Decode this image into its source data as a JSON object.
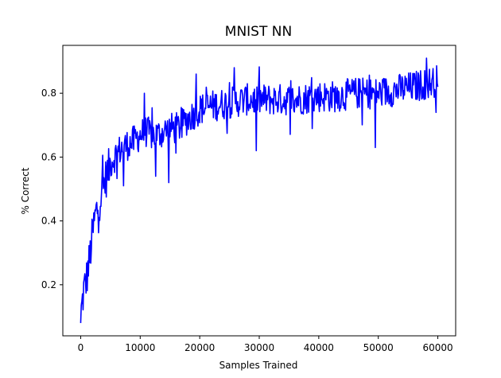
{
  "chart_data": {
    "type": "line",
    "title": "MNIST NN",
    "xlabel": "Samples Trained",
    "ylabel": "% Correct",
    "xlim": [
      -3000,
      63000
    ],
    "ylim": [
      0.04,
      0.95
    ],
    "x_ticks": [
      0,
      10000,
      20000,
      30000,
      40000,
      50000,
      60000
    ],
    "y_ticks": [
      0.2,
      0.4,
      0.6,
      0.8
    ],
    "grid": false,
    "legend": "none",
    "series": [
      {
        "color": "#0000ff",
        "x_start": 0,
        "x_step": 100,
        "points": 600,
        "anchors_x": [
          0,
          500,
          1000,
          1500,
          2000,
          2500,
          3000,
          3500,
          4000,
          4500,
          5000,
          6000,
          7000,
          8000,
          9000,
          10000,
          11000,
          12000,
          13000,
          14000,
          15000,
          16000,
          17000,
          18000,
          20000,
          22000,
          25000,
          28000,
          30000,
          33000,
          36000,
          40000,
          43000,
          46000,
          50000,
          53000,
          56000,
          60000
        ],
        "anchors_y": [
          0.1,
          0.18,
          0.22,
          0.28,
          0.36,
          0.42,
          0.45,
          0.49,
          0.52,
          0.55,
          0.58,
          0.61,
          0.63,
          0.64,
          0.65,
          0.67,
          0.68,
          0.67,
          0.67,
          0.68,
          0.69,
          0.69,
          0.7,
          0.72,
          0.75,
          0.76,
          0.77,
          0.78,
          0.78,
          0.78,
          0.78,
          0.79,
          0.79,
          0.8,
          0.8,
          0.81,
          0.82,
          0.84
        ],
        "noise_amplitude": 0.05,
        "notable_points": [
          {
            "x": 0,
            "y": 0.08
          },
          {
            "x": 7200,
            "y": 0.51
          },
          {
            "x": 10700,
            "y": 0.8
          },
          {
            "x": 12600,
            "y": 0.54
          },
          {
            "x": 14800,
            "y": 0.52
          },
          {
            "x": 19400,
            "y": 0.86
          },
          {
            "x": 25800,
            "y": 0.88
          },
          {
            "x": 29500,
            "y": 0.62
          },
          {
            "x": 49500,
            "y": 0.63
          },
          {
            "x": 58100,
            "y": 0.91
          },
          {
            "x": 59700,
            "y": 0.74
          },
          {
            "x": 60000,
            "y": 0.82
          }
        ]
      }
    ]
  }
}
